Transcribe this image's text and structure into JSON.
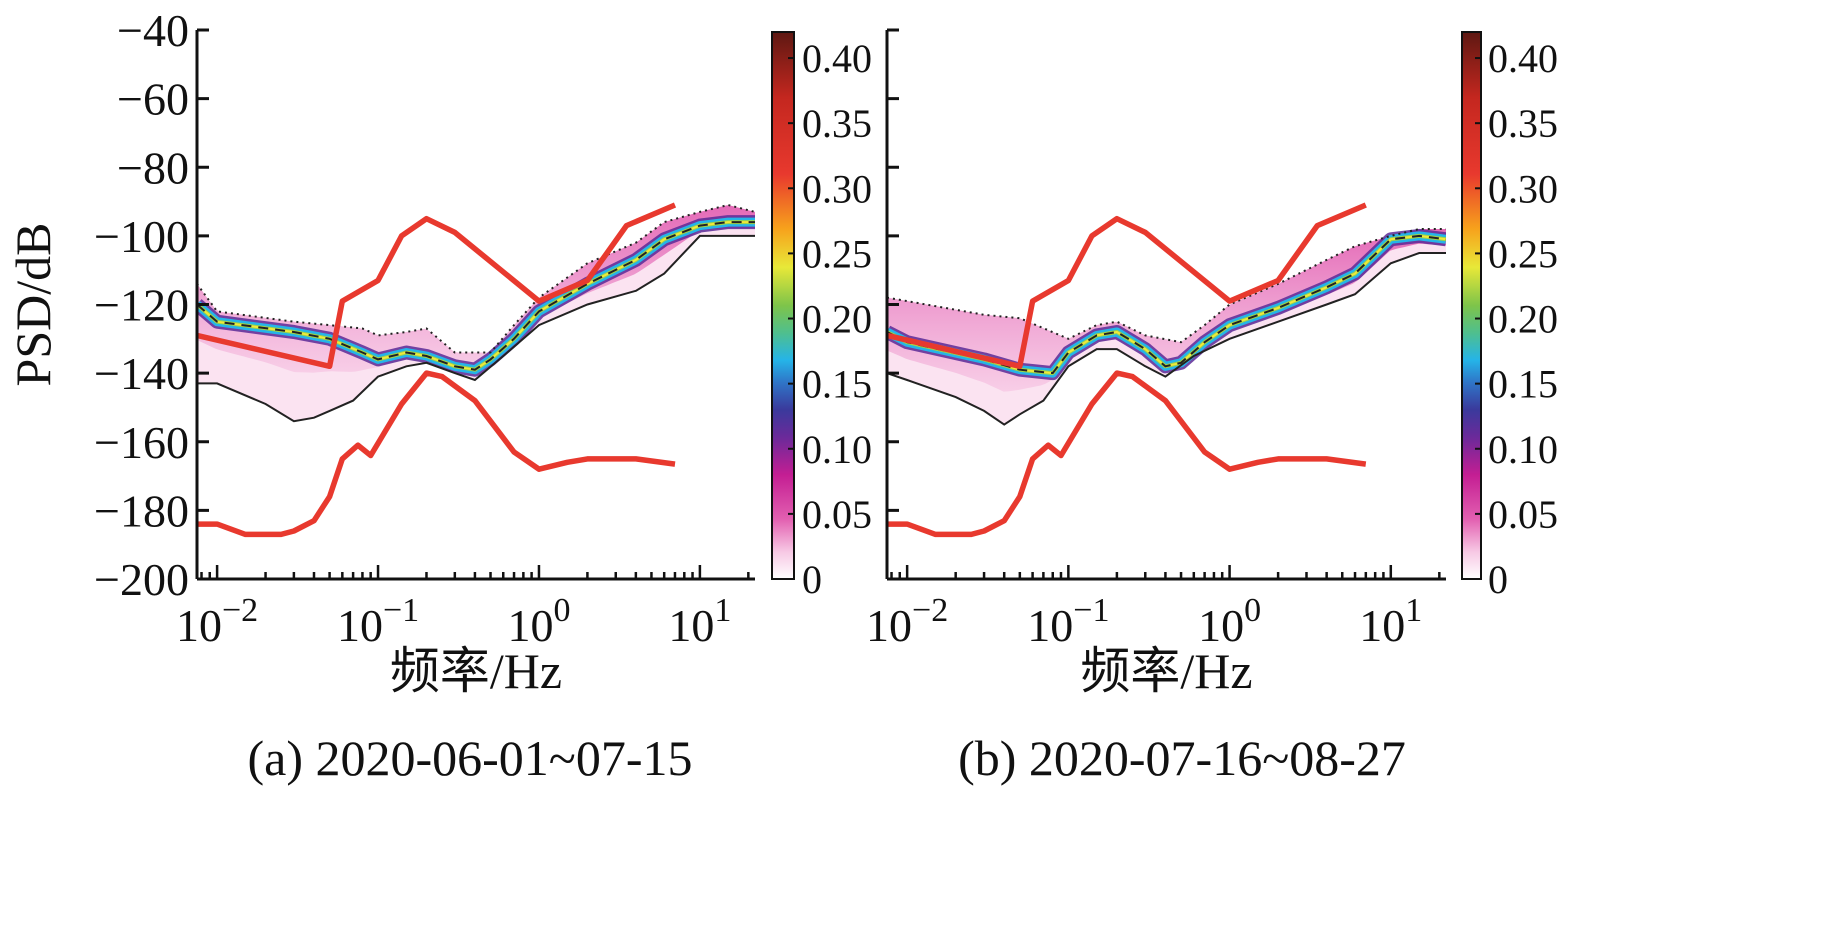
{
  "figure": {
    "panels": [
      {
        "id": "a",
        "caption": "(a) 2020-06-01~07-15"
      },
      {
        "id": "b",
        "caption": "(b) 2020-07-16~08-27"
      }
    ],
    "ylabel": "PSD/dB",
    "xlabel": "频率/Hz"
  },
  "colors": {
    "noise_model": "#e8392e",
    "median": "#222222",
    "bounds": "#222222"
  },
  "chart_data": [
    {
      "type": "area",
      "panel": "a",
      "title": "(a) 2020-06-01~07-15",
      "xlabel": "频率/Hz",
      "ylabel": "PSD/dB",
      "xscale": "log",
      "xlim": [
        0.0075,
        22
      ],
      "ylim": [
        -200,
        -40
      ],
      "x_ticks": [
        0.01,
        0.1,
        1,
        10
      ],
      "x_tick_labels": [
        {
          "base": "10",
          "exp": "−2"
        },
        {
          "base": "10",
          "exp": "−1"
        },
        {
          "base": "10",
          "exp": "0"
        },
        {
          "base": "10",
          "exp": "1"
        }
      ],
      "y_ticks": [
        -40,
        -60,
        -80,
        -100,
        -120,
        -140,
        -160,
        -180,
        -200
      ],
      "y_tick_labels": [
        "−40",
        "−60",
        "−80",
        "−100",
        "−120",
        "−140",
        "−160",
        "−180",
        "−200"
      ],
      "colorbar": {
        "min": 0,
        "max": 0.42,
        "ticks": [
          0,
          0.05,
          0.1,
          0.15,
          0.2,
          0.25,
          0.3,
          0.35,
          0.4
        ],
        "tick_labels": [
          "0",
          "0.05",
          "0.10",
          "0.15",
          "0.20",
          "0.25",
          "0.30",
          "0.35",
          "0.40"
        ]
      },
      "series": [
        {
          "role": "nhnm",
          "x": [
            0.0075,
            0.05,
            0.06,
            0.1,
            0.14,
            0.2,
            0.3,
            1.0,
            2.0,
            3.5,
            7.0
          ],
          "y": [
            -129,
            -138,
            -119,
            -113,
            -100,
            -95,
            -99,
            -119,
            -113,
            -97,
            -91
          ]
        },
        {
          "role": "nlnm",
          "x": [
            0.0075,
            0.01,
            0.015,
            0.025,
            0.03,
            0.04,
            0.05,
            0.06,
            0.075,
            0.09,
            0.14,
            0.2,
            0.25,
            0.4,
            0.7,
            1.0,
            1.5,
            2.0,
            4.0,
            7.0
          ],
          "y": [
            -184,
            -184,
            -187,
            -187,
            -186,
            -183,
            -176,
            -165,
            -161,
            -164,
            -149,
            -140,
            -141,
            -148,
            -163,
            -168,
            -166,
            -165,
            -165,
            -166.5
          ]
        },
        {
          "role": "median",
          "x": [
            0.0075,
            0.01,
            0.03,
            0.05,
            0.08,
            0.1,
            0.15,
            0.2,
            0.3,
            0.4,
            0.5,
            0.7,
            1.0,
            2.0,
            4.0,
            6.0,
            10,
            15,
            22
          ],
          "y": [
            -120,
            -125,
            -128,
            -130,
            -134,
            -136,
            -134,
            -135,
            -138,
            -139,
            -136,
            -130,
            -122,
            -114,
            -107,
            -101,
            -97,
            -96,
            -96
          ]
        },
        {
          "role": "max",
          "x": [
            0.0075,
            0.01,
            0.03,
            0.05,
            0.08,
            0.1,
            0.15,
            0.2,
            0.3,
            0.5,
            0.7,
            1.0,
            2.0,
            4.0,
            6.0,
            10,
            15,
            22
          ],
          "y": [
            -114,
            -122,
            -125,
            -126,
            -127,
            -129,
            -128,
            -127,
            -134,
            -134,
            -126,
            -118,
            -108,
            -102,
            -96,
            -93,
            -91,
            -93
          ]
        },
        {
          "role": "min",
          "x": [
            0.0075,
            0.01,
            0.02,
            0.03,
            0.04,
            0.05,
            0.07,
            0.1,
            0.15,
            0.2,
            0.3,
            0.4,
            0.6,
            1.0,
            2.0,
            4.0,
            6.0,
            10,
            15,
            22
          ],
          "y": [
            -143,
            -143,
            -149,
            -154,
            -153,
            -151,
            -148,
            -141,
            -138,
            -137,
            -140,
            -142,
            -135,
            -126,
            -120,
            -116,
            -111,
            -100,
            -100,
            -100
          ]
        }
      ]
    },
    {
      "type": "area",
      "panel": "b",
      "title": "(b) 2020-07-16~08-27",
      "xlabel": "频率/Hz",
      "ylabel": "PSD/dB",
      "xscale": "log",
      "xlim": [
        0.0075,
        22
      ],
      "ylim": [
        -200,
        -40
      ],
      "x_ticks": [
        0.01,
        0.1,
        1,
        10
      ],
      "x_tick_labels": [
        {
          "base": "10",
          "exp": "−2"
        },
        {
          "base": "10",
          "exp": "−1"
        },
        {
          "base": "10",
          "exp": "0"
        },
        {
          "base": "10",
          "exp": "1"
        }
      ],
      "y_ticks": [
        -40,
        -60,
        -80,
        -100,
        -120,
        -140,
        -160,
        -180,
        -200
      ],
      "y_tick_labels": [],
      "colorbar": {
        "min": 0,
        "max": 0.42,
        "ticks": [
          0,
          0.05,
          0.1,
          0.15,
          0.2,
          0.25,
          0.3,
          0.35,
          0.4
        ],
        "tick_labels": [
          "0",
          "0.05",
          "0.10",
          "0.15",
          "0.20",
          "0.25",
          "0.30",
          "0.35",
          "0.40"
        ]
      },
      "series": [
        {
          "role": "nhnm",
          "x": [
            0.0075,
            0.05,
            0.06,
            0.1,
            0.14,
            0.2,
            0.3,
            1.0,
            2.0,
            3.5,
            7.0
          ],
          "y": [
            -129,
            -138,
            -119,
            -113,
            -100,
            -95,
            -99,
            -119,
            -113,
            -97,
            -91
          ]
        },
        {
          "role": "nlnm",
          "x": [
            0.0075,
            0.01,
            0.015,
            0.025,
            0.03,
            0.04,
            0.05,
            0.06,
            0.075,
            0.09,
            0.14,
            0.2,
            0.25,
            0.4,
            0.7,
            1.0,
            1.5,
            2.0,
            4.0,
            7.0
          ],
          "y": [
            -184,
            -184,
            -187,
            -187,
            -186,
            -183,
            -176,
            -165,
            -161,
            -164,
            -149,
            -140,
            -141,
            -148,
            -163,
            -168,
            -166,
            -165,
            -165,
            -166.5
          ]
        },
        {
          "role": "median",
          "x": [
            0.0075,
            0.01,
            0.03,
            0.05,
            0.08,
            0.1,
            0.15,
            0.2,
            0.3,
            0.4,
            0.5,
            0.7,
            1.0,
            2.0,
            4.0,
            6.0,
            10,
            15,
            22
          ],
          "y": [
            -128,
            -131,
            -136,
            -139,
            -140,
            -134,
            -129,
            -128,
            -133,
            -138,
            -137,
            -131,
            -126,
            -121,
            -115,
            -111,
            -101,
            -100,
            -101
          ]
        },
        {
          "role": "max",
          "x": [
            0.0075,
            0.01,
            0.03,
            0.05,
            0.1,
            0.15,
            0.2,
            0.3,
            0.5,
            0.7,
            1.0,
            2.0,
            4.0,
            6.0,
            10,
            15,
            22
          ],
          "y": [
            -118,
            -119,
            -123,
            -124,
            -130,
            -126,
            -125,
            -129,
            -131,
            -126,
            -120,
            -114,
            -107,
            -103,
            -100,
            -98,
            -98
          ]
        },
        {
          "role": "min",
          "x": [
            0.0075,
            0.01,
            0.02,
            0.03,
            0.04,
            0.05,
            0.07,
            0.1,
            0.15,
            0.2,
            0.3,
            0.4,
            0.6,
            1.0,
            2.0,
            4.0,
            6.0,
            10,
            15,
            22
          ],
          "y": [
            -140,
            -142,
            -147,
            -151,
            -155,
            -152,
            -148,
            -138,
            -133,
            -133,
            -138,
            -141,
            -135,
            -130,
            -125,
            -120,
            -117,
            -108,
            -105,
            -105
          ]
        }
      ]
    }
  ]
}
